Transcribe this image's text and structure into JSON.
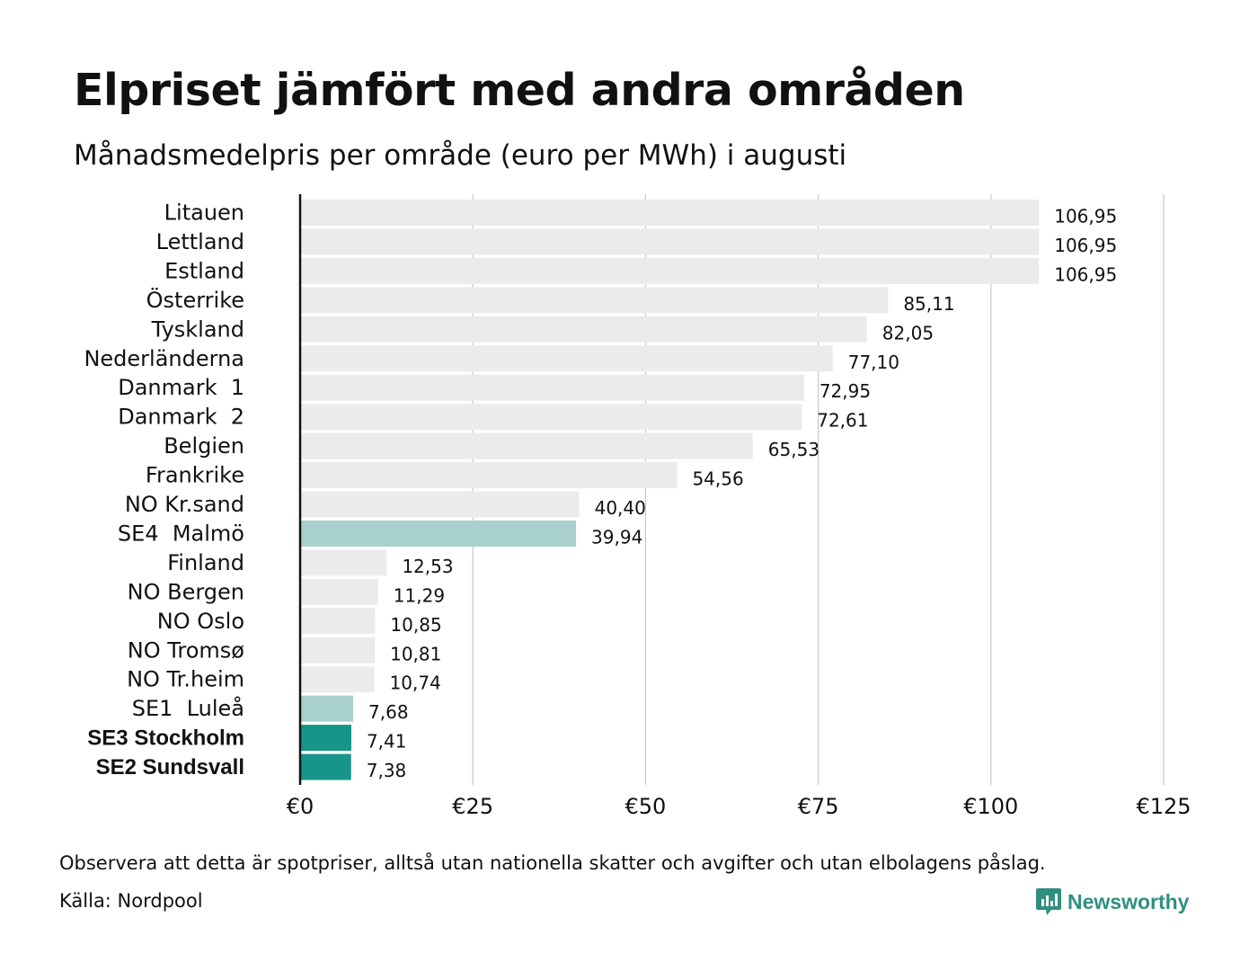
{
  "title": "Elpriset jämfört med andra områden",
  "subtitle": "Månadsmedelpris per område (euro per MWh) i augusti",
  "note": "Observera att detta är spotpriser, alltså utan nationella skatter och avgifter och utan elbolagens påslag.",
  "source": "Källa: Nordpool",
  "brand": {
    "name": "Newsworthy",
    "icon": "newsworthy-logo-icon",
    "color": "#2f8f80"
  },
  "colors": {
    "default_bar": "#ebebeb",
    "highlight_light": "#a8d1cb",
    "highlight_dark": "#16958a",
    "gridline": "#c8c8c8",
    "axis": "#111111"
  },
  "chart_data": {
    "type": "bar",
    "orientation": "horizontal",
    "categories": [
      "Litauen",
      "Lettland",
      "Estland",
      "Österrike",
      "Tyskland",
      "Nederländerna",
      "Danmark  1",
      "Danmark  2",
      "Belgien",
      "Frankrike",
      "NO Kr.sand",
      "SE4  Malmö",
      "Finland",
      "NO Bergen",
      "NO Oslo",
      "NO Tromsø",
      "NO Tr.heim",
      "SE1  Luleå",
      "SE3 Stockholm",
      "SE2 Sundsvall"
    ],
    "values": [
      106.95,
      106.95,
      106.95,
      85.11,
      82.05,
      77.1,
      72.95,
      72.61,
      65.53,
      54.56,
      40.4,
      39.94,
      12.53,
      11.29,
      10.85,
      10.81,
      10.74,
      7.68,
      7.41,
      7.38
    ],
    "value_labels": [
      "106,95",
      "106,95",
      "106,95",
      "85,11",
      "82,05",
      "77,10",
      "72,95",
      "72,61",
      "65,53",
      "54,56",
      "40,40",
      "39,94",
      "12,53",
      "11,29",
      "10,85",
      "10,81",
      "10,74",
      "7,68",
      "7,41",
      "7,38"
    ],
    "highlight": [
      "none",
      "none",
      "none",
      "none",
      "none",
      "none",
      "none",
      "none",
      "none",
      "none",
      "none",
      "light",
      "none",
      "none",
      "none",
      "none",
      "none",
      "light",
      "dark",
      "dark"
    ],
    "bold_labels": [
      "SE3 Stockholm",
      "SE2 Sundsvall"
    ],
    "xlim": [
      0,
      125
    ],
    "xticks": [
      0,
      25,
      50,
      75,
      100,
      125
    ],
    "xtick_labels": [
      "€0",
      "€25",
      "€50",
      "€75",
      "€100",
      "€125"
    ],
    "grid": true,
    "title": "Elpriset jämfört med andra områden",
    "subtitle": "Månadsmedelpris per område (euro per MWh) i augusti",
    "xlabel": "",
    "ylabel": ""
  }
}
